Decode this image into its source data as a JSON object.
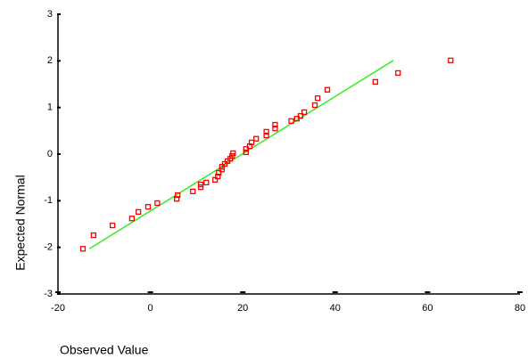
{
  "chart_data": {
    "type": "scatter",
    "x_label": "Observed Value",
    "y_label": "Expected Normal",
    "x": [
      -14.6,
      -12.3,
      -8.2,
      -4.0,
      -2.6,
      -0.5,
      1.5,
      5.7,
      5.9,
      9.2,
      10.9,
      10.9,
      12.1,
      14.0,
      14.6,
      14.8,
      15.5,
      15.5,
      16.1,
      16.7,
      17.3,
      17.7,
      17.9,
      20.7,
      20.7,
      21.5,
      21.9,
      22.9,
      25.1,
      25.1,
      27.0,
      27.0,
      30.5,
      31.7,
      32.5,
      33.3,
      35.6,
      36.2,
      38.3,
      48.7,
      53.6,
      65.0
    ],
    "values": [
      -2.03,
      -1.74,
      -1.53,
      -1.38,
      -1.24,
      -1.13,
      -1.05,
      -0.96,
      -0.88,
      -0.8,
      -0.71,
      -0.65,
      -0.61,
      -0.55,
      -0.48,
      -0.4,
      -0.33,
      -0.27,
      -0.21,
      -0.15,
      -0.1,
      -0.04,
      0.02,
      0.04,
      0.11,
      0.17,
      0.25,
      0.33,
      0.4,
      0.48,
      0.55,
      0.63,
      0.71,
      0.76,
      0.82,
      0.9,
      1.05,
      1.2,
      1.38,
      1.55,
      1.74,
      2.01
    ],
    "color": "#ff0000",
    "reference_line": {
      "x": [
        -13.2,
        52.6
      ],
      "values": [
        -2.03,
        2.01
      ],
      "color": "#33ee22"
    },
    "xlim": [
      -20,
      80
    ],
    "xticks": [
      -20,
      0,
      20,
      40,
      60,
      80
    ],
    "ylim": [
      -3,
      3
    ],
    "yticks": [
      -3,
      -2,
      -1,
      0,
      1,
      2,
      3
    ]
  }
}
